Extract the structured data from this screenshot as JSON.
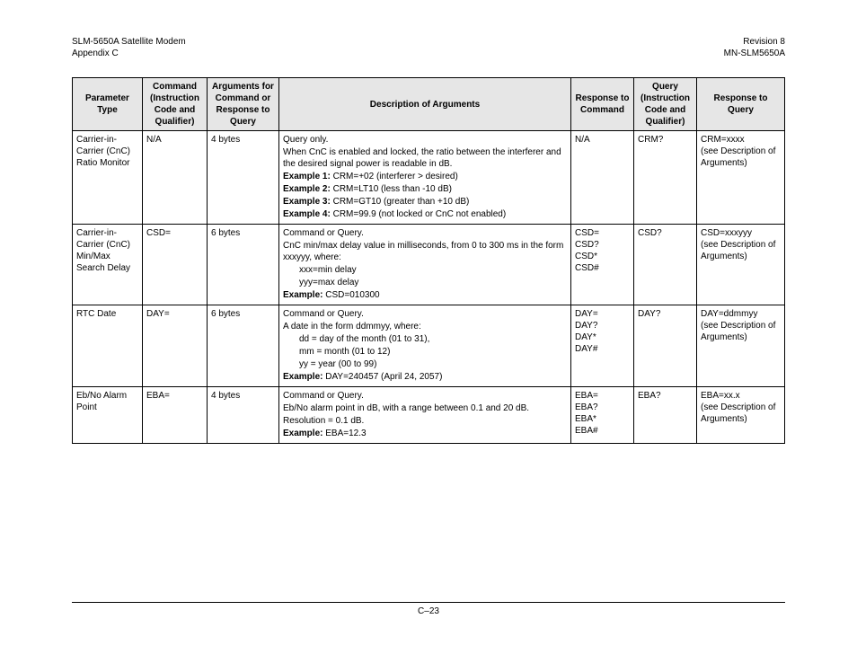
{
  "header": {
    "left1": "SLM-5650A Satellite Modem",
    "left2": "Appendix C",
    "right1": "Revision 8",
    "right2": "MN-SLM5650A"
  },
  "footer": {
    "pageno": "C–23"
  },
  "table": {
    "headers": {
      "param": "Parameter Type",
      "cmd": "Command (Instruction Code and Qualifier)",
      "args": "Arguments for Command or Response to Query",
      "desc": "Description of Arguments",
      "respcmd": "Response to Command",
      "query": "Query (Instruction Code and Qualifier)",
      "respq": "Response to Query"
    },
    "rows": {
      "r1": {
        "param": "Carrier-in-Carrier (CnC) Ratio Monitor",
        "cmd": "N/A",
        "args": "4 bytes",
        "d1": "Query only.",
        "d2": "When CnC is enabled and locked, the ratio between the interferer and the desired signal power is readable in dB.",
        "e1l": "Example 1:",
        "e1t": " CRM=+02 (interferer > desired)",
        "e2l": "Example 2:",
        "e2t": " CRM=LT10 (less than -10 dB)",
        "e3l": "Example 3:",
        "e3t": " CRM=GT10 (greater than +10 dB)",
        "e4l": "Example 4:",
        "e4t": " CRM=99.9 (not locked or CnC not enabled)",
        "respcmd": "N/A",
        "query": "CRM?",
        "rq1": "CRM=xxxx",
        "rq2": "(see Description of Arguments)"
      },
      "r2": {
        "param": "Carrier-in-Carrier (CnC) Min/Max Search Delay",
        "cmd": "CSD=",
        "args": "6 bytes",
        "d1": "Command or Query.",
        "d2": "CnC min/max delay value in milliseconds, from 0 to 300 ms in the form xxxyyy, where:",
        "d3": "xxx=min delay",
        "d4": "yyy=max delay",
        "exl": "Example:",
        "ext": " CSD=010300",
        "rc1": "CSD=",
        "rc2": "CSD?",
        "rc3": "CSD*",
        "rc4": "CSD#",
        "query": "CSD?",
        "rq1": "CSD=xxxyyy",
        "rq2": "(see Description of Arguments)"
      },
      "r3": {
        "param": "RTC Date",
        "cmd": "DAY=",
        "args": "6 bytes",
        "d1": "Command or Query.",
        "d2": "A date in the form ddmmyy, where:",
        "d3": "dd = day of the month  (01 to 31),",
        "d4": "mm = month (01 to 12)",
        "d5": "yy = year (00 to 99)",
        "exl": "Example:",
        "ext": " DAY=240457 (April 24, 2057)",
        "rc1": "DAY=",
        "rc2": "DAY?",
        "rc3": "DAY*",
        "rc4": "DAY#",
        "query": "DAY?",
        "rq1": "DAY=ddmmyy",
        "rq2": "(see Description of Arguments)"
      },
      "r4": {
        "param": "Eb/No Alarm Point",
        "cmd": "EBA=",
        "args": "4 bytes",
        "d1": "Command or Query.",
        "d2": "Eb/No alarm point in dB, with a range between 0.1 and 20 dB.",
        "d3": "Resolution = 0.1 dB.",
        "exl": "Example:",
        "ext": " EBA=12.3",
        "rc1": "EBA=",
        "rc2": "EBA?",
        "rc3": "EBA*",
        "rc4": "EBA#",
        "query": "EBA?",
        "rq1": "EBA=xx.x",
        "rq2": "(see Description of Arguments)"
      }
    }
  }
}
